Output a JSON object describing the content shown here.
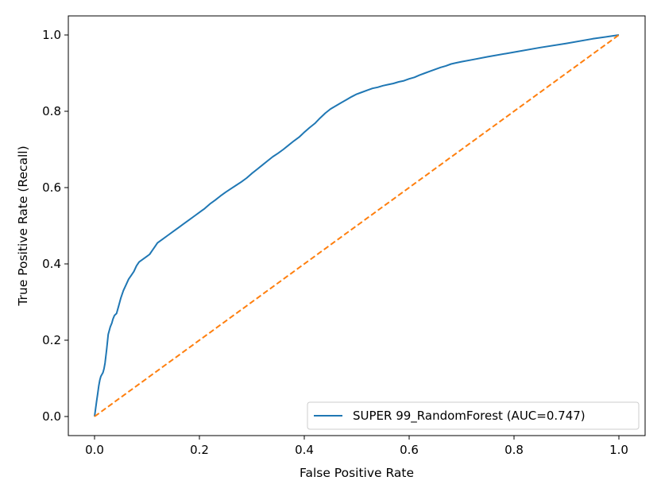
{
  "chart_data": {
    "type": "line",
    "title": "",
    "xlabel": "False Positive Rate",
    "ylabel": "True Positive Rate (Recall)",
    "xlim": [
      -0.05,
      1.05
    ],
    "ylim": [
      -0.05,
      1.05
    ],
    "xticks": [
      0.0,
      0.2,
      0.4,
      0.6,
      0.8,
      1.0
    ],
    "xtick_labels": [
      "0.0",
      "0.2",
      "0.4",
      "0.6",
      "0.8",
      "1.0"
    ],
    "yticks": [
      0.0,
      0.2,
      0.4,
      0.6,
      0.8,
      1.0
    ],
    "ytick_labels": [
      "0.0",
      "0.2",
      "0.4",
      "0.6",
      "0.8",
      "1.0"
    ],
    "grid": false,
    "legend_position": "lower-right",
    "series": [
      {
        "name": "SUPER 99_RandomForest (AUC=0.747)",
        "color": "#1f77b4",
        "style": "solid",
        "show_in_legend": true,
        "x": [
          0.0,
          0.002,
          0.004,
          0.006,
          0.008,
          0.01,
          0.012,
          0.014,
          0.016,
          0.018,
          0.02,
          0.023,
          0.026,
          0.03,
          0.033,
          0.035,
          0.038,
          0.042,
          0.046,
          0.05,
          0.055,
          0.06,
          0.065,
          0.07,
          0.075,
          0.08,
          0.085,
          0.09,
          0.095,
          0.1,
          0.105,
          0.11,
          0.115,
          0.12,
          0.125,
          0.13,
          0.14,
          0.15,
          0.16,
          0.17,
          0.18,
          0.19,
          0.2,
          0.21,
          0.22,
          0.23,
          0.24,
          0.25,
          0.26,
          0.27,
          0.28,
          0.29,
          0.3,
          0.31,
          0.32,
          0.33,
          0.34,
          0.35,
          0.36,
          0.37,
          0.38,
          0.39,
          0.4,
          0.41,
          0.42,
          0.43,
          0.44,
          0.45,
          0.46,
          0.47,
          0.48,
          0.49,
          0.5,
          0.51,
          0.52,
          0.53,
          0.54,
          0.55,
          0.56,
          0.57,
          0.58,
          0.59,
          0.6,
          0.61,
          0.62,
          0.63,
          0.64,
          0.65,
          0.66,
          0.67,
          0.68,
          0.69,
          0.7,
          0.72,
          0.75,
          0.8,
          0.85,
          0.9,
          0.95,
          1.0
        ],
        "y": [
          0.0,
          0.02,
          0.04,
          0.06,
          0.08,
          0.095,
          0.105,
          0.11,
          0.115,
          0.125,
          0.14,
          0.175,
          0.215,
          0.235,
          0.245,
          0.255,
          0.265,
          0.27,
          0.29,
          0.31,
          0.33,
          0.345,
          0.36,
          0.37,
          0.38,
          0.395,
          0.405,
          0.41,
          0.415,
          0.42,
          0.425,
          0.435,
          0.445,
          0.455,
          0.46,
          0.465,
          0.475,
          0.485,
          0.495,
          0.505,
          0.515,
          0.525,
          0.535,
          0.545,
          0.557,
          0.567,
          0.578,
          0.588,
          0.597,
          0.606,
          0.615,
          0.625,
          0.637,
          0.648,
          0.659,
          0.67,
          0.681,
          0.69,
          0.7,
          0.711,
          0.722,
          0.732,
          0.745,
          0.757,
          0.768,
          0.782,
          0.795,
          0.806,
          0.814,
          0.822,
          0.83,
          0.838,
          0.845,
          0.85,
          0.855,
          0.86,
          0.863,
          0.867,
          0.87,
          0.873,
          0.877,
          0.88,
          0.885,
          0.889,
          0.895,
          0.9,
          0.905,
          0.91,
          0.915,
          0.919,
          0.924,
          0.927,
          0.93,
          0.935,
          0.943,
          0.955,
          0.967,
          0.978,
          0.99,
          1.0
        ]
      },
      {
        "name": "",
        "color": "#ff7f0e",
        "style": "dashed",
        "show_in_legend": false,
        "x": [
          0.0,
          1.0
        ],
        "y": [
          0.0,
          1.0
        ]
      }
    ]
  }
}
